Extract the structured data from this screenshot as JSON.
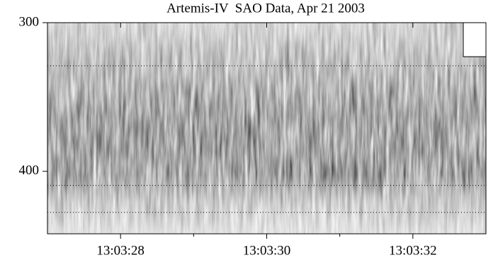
{
  "chart_data": {
    "type": "spectrogram",
    "title": "Artemis-IV  SAO Data, Apr 21 2003",
    "xlim": [
      27,
      33
    ],
    "xticks": [
      {
        "value": 28,
        "label": "13:03:28"
      },
      {
        "value": 30,
        "label": "13:03:30"
      },
      {
        "value": 32,
        "label": "13:03:32"
      }
    ],
    "xminorticks": [
      29,
      31
    ],
    "ylim": [
      300,
      442
    ],
    "y_inverted": true,
    "yticks": [
      300,
      400
    ],
    "hlines": [
      329,
      409.5,
      427.6
    ]
  }
}
